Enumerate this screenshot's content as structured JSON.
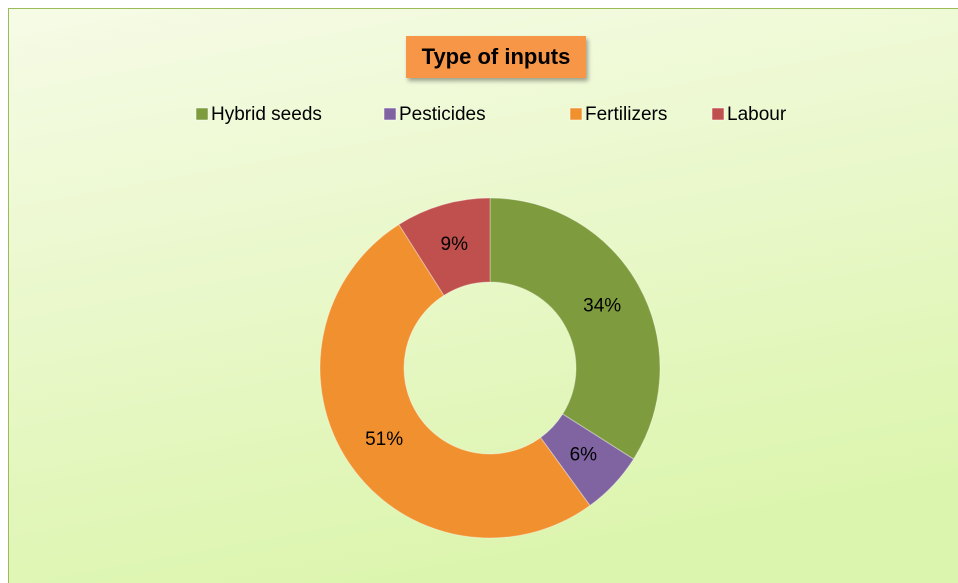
{
  "chart_data": {
    "type": "donut",
    "title": "Type of inputs",
    "categories": [
      "Hybrid seeds",
      "Pesticides",
      "Fertilizers",
      "Labour"
    ],
    "values": [
      34,
      6,
      51,
      9
    ],
    "value_labels": [
      "34%",
      "6%",
      "51%",
      "9%"
    ],
    "colors": [
      "#7e9c3e",
      "#8064a2",
      "#f0902f",
      "#c0504d"
    ],
    "legend": "top"
  }
}
